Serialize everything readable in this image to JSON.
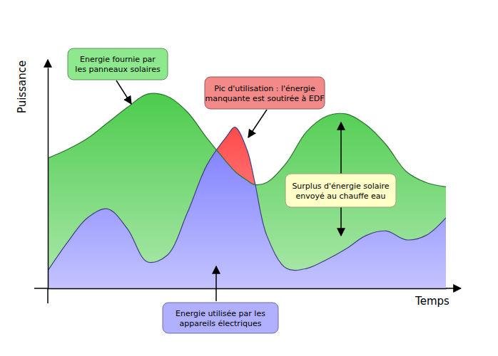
{
  "chart_data": {
    "type": "area",
    "x_label": "Temps",
    "y_label": "Puissance",
    "x": [
      0,
      5,
      10,
      15,
      20,
      25,
      30,
      35,
      40,
      45,
      47,
      50,
      52,
      55,
      60,
      65,
      70,
      75,
      80,
      85,
      90,
      95,
      100
    ],
    "series": [
      {
        "color": "#4ccc4c",
        "values": [
          59,
          63,
          68,
          75,
          82,
          88,
          87,
          80,
          68,
          57,
          53,
          49,
          47,
          48,
          57,
          71,
          78,
          79,
          74,
          65,
          53,
          48,
          46
        ]
      },
      {
        "color": "#7a7aff",
        "values": [
          8,
          21,
          32,
          36,
          27,
          12,
          15,
          34,
          56,
          69,
          73,
          63,
          48,
          24,
          9,
          9,
          13,
          18,
          24,
          26,
          22,
          24,
          32
        ]
      }
    ],
    "xlim": [
      0,
      100
    ],
    "ylim": [
      0,
      100
    ],
    "xticks": [],
    "yticks": [],
    "tick_labels": false,
    "annotations": [
      {
        "text": [
          "Energie fournie par",
          "les panneaux solaires"
        ],
        "color": "#8ee88e"
      },
      {
        "text": [
          "Pic d'utilisation : l'énergie",
          "manquante est soutirée à EDF"
        ],
        "color": "#f28a8a"
      },
      {
        "text": [
          "Surplus d'énergie solaire",
          "envoyé au chauffe eau"
        ],
        "color": "#ffffc8"
      },
      {
        "text": [
          "Energie utilisée par les",
          "appareils électriques"
        ],
        "color": "#b0b0ff"
      }
    ]
  }
}
